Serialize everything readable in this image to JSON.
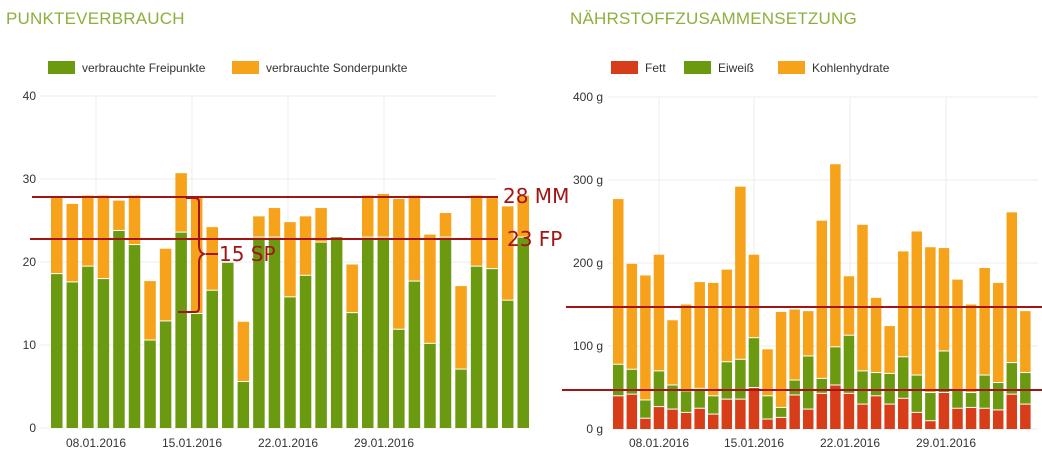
{
  "chart_data": [
    {
      "type": "bar",
      "stacked": true,
      "title": "PUNKTEVERBRAUCH",
      "ylim": [
        0,
        40
      ],
      "yticks": [
        "0",
        "10",
        "20",
        "30",
        "40"
      ],
      "xticks": [
        "08.01.2016",
        "15.01.2016",
        "22.01.2016",
        "29.01.2016"
      ],
      "grid": true,
      "legend_placement": "top-left",
      "series": [
        {
          "name": "verbrauchte Freipunkte",
          "color": "#6b9a10",
          "values": [
            18.6,
            17.6,
            19.5,
            18.0,
            23.8,
            22.1,
            10.6,
            12.9,
            23.6,
            13.8,
            16.6,
            19.9,
            5.6,
            23.0,
            23.0,
            15.8,
            18.4,
            22.4,
            23.0,
            13.9,
            23.0,
            23.0,
            11.9,
            17.7,
            10.2,
            23.0,
            7.1,
            19.5,
            19.2,
            15.4,
            23.0
          ]
        },
        {
          "name": "verbrauchte Sonderpunkte",
          "color": "#f7a21b",
          "values": [
            9.2,
            9.4,
            8.5,
            10.0,
            3.6,
            5.9,
            7.1,
            8.7,
            7.1,
            14.0,
            7.6,
            0.0,
            7.2,
            2.5,
            3.5,
            9.0,
            7.1,
            4.1,
            0.0,
            5.8,
            5.0,
            5.2,
            15.7,
            10.3,
            13.1,
            2.9,
            10.0,
            8.5,
            8.5,
            11.3,
            5.0
          ]
        }
      ],
      "annotations": [
        {
          "label": "28 MM",
          "value": 28.0,
          "color": "#a31515"
        },
        {
          "label": "23 FP",
          "value": 23.0,
          "color": "#a31515"
        },
        {
          "label": "15 SP",
          "color": "#a31515"
        }
      ]
    },
    {
      "type": "bar",
      "stacked": true,
      "title": "NÄHRSTOFFZUSAMMENSETZUNG",
      "ylim": [
        0,
        400
      ],
      "yticks": [
        "0 g",
        "100 g",
        "200 g",
        "300 g",
        "400 g"
      ],
      "xticks": [
        "08.01.2016",
        "15.01.2016",
        "22.01.2016",
        "29.01.2016"
      ],
      "grid": true,
      "legend_placement": "top-left",
      "series": [
        {
          "name": "Fett",
          "color": "#d83d1a",
          "values": [
            40,
            42,
            13,
            27,
            24,
            20,
            25,
            18,
            36,
            36,
            50,
            12,
            14,
            41,
            24,
            43,
            53,
            43,
            30,
            40,
            30,
            37,
            20,
            10,
            44,
            25,
            26,
            25,
            23,
            42,
            30
          ]
        },
        {
          "name": "Eiweiß",
          "color": "#6b9a10",
          "values": [
            38,
            30,
            22,
            43,
            29,
            26,
            24,
            22,
            45,
            48,
            60,
            28,
            12,
            18,
            64,
            18,
            46,
            70,
            40,
            28,
            37,
            50,
            45,
            34,
            50,
            22,
            18,
            40,
            33,
            38,
            38
          ]
        },
        {
          "name": "Kohlenhydrate",
          "color": "#f7a21b",
          "values": [
            199,
            127,
            150,
            140,
            78,
            104,
            128,
            136,
            111,
            208,
            100,
            56,
            115,
            85,
            54,
            190,
            220,
            71,
            176,
            90,
            57,
            127,
            173,
            175,
            124,
            133,
            106,
            129,
            120,
            181,
            74
          ]
        }
      ],
      "annotations": [
        {
          "value": 147,
          "color": "#a31515"
        },
        {
          "value": 47,
          "color": "#a31515"
        }
      ]
    }
  ]
}
